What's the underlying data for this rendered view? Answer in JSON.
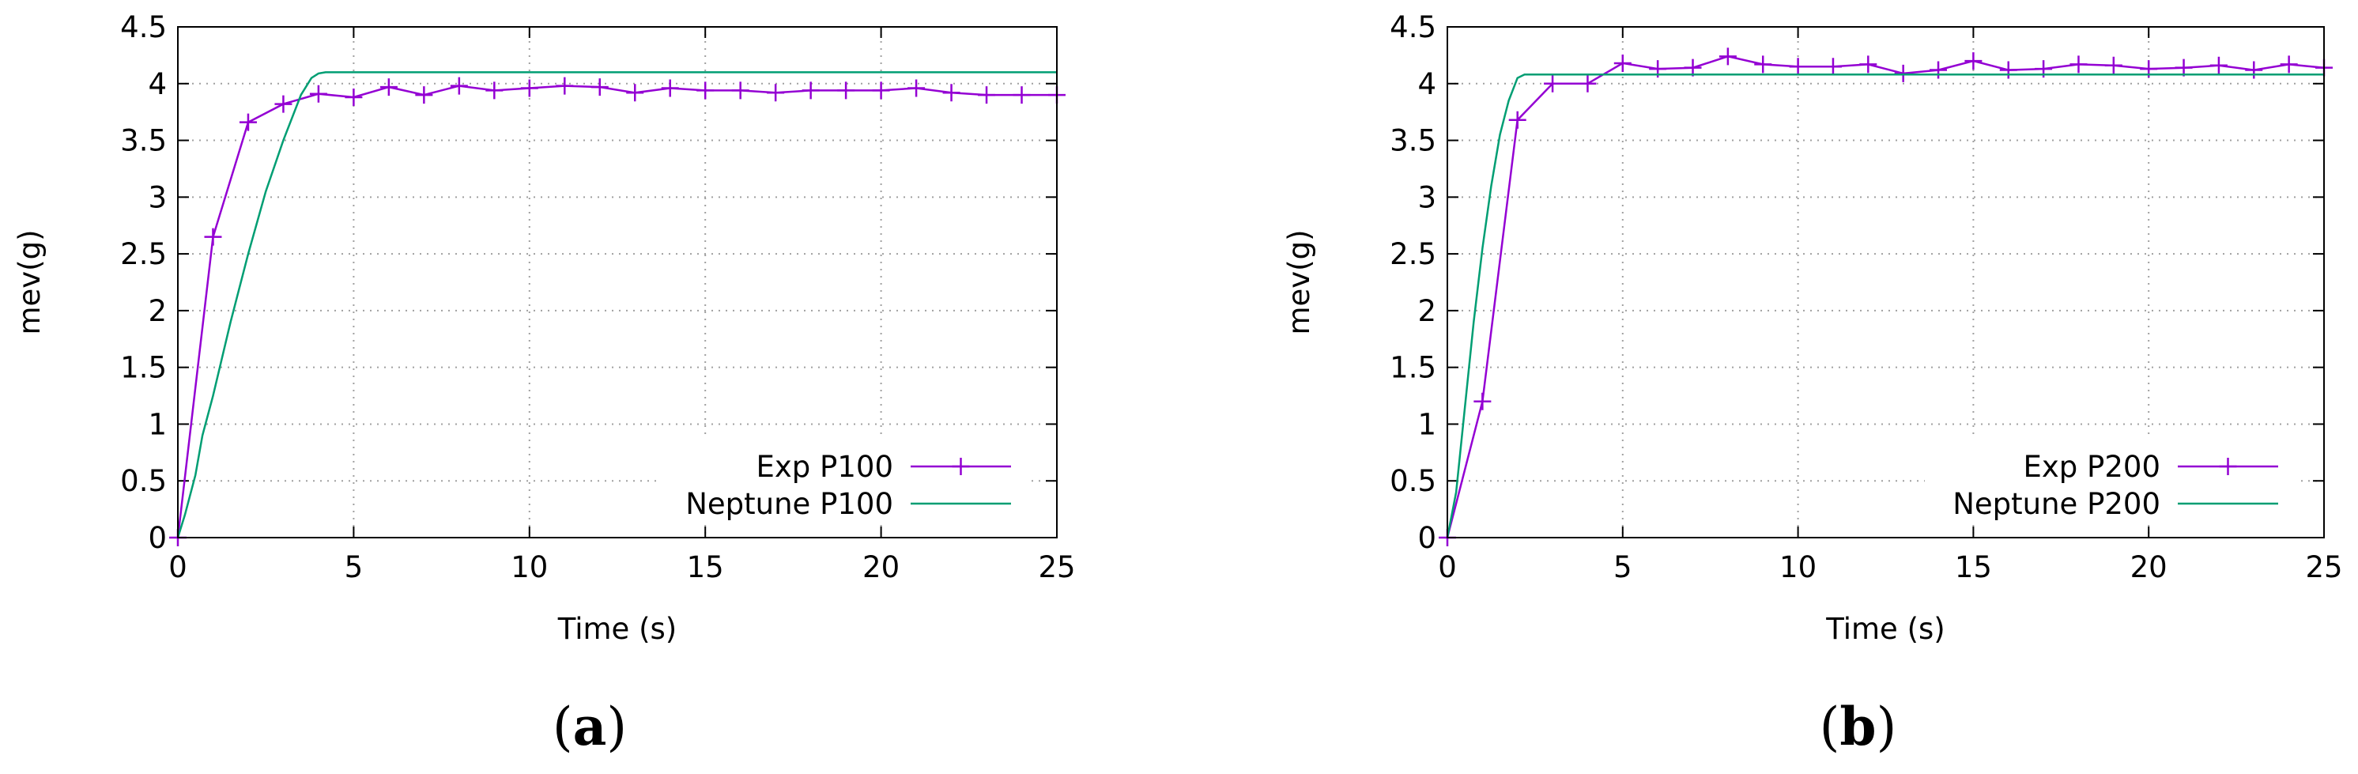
{
  "chart_data": [
    {
      "type": "line",
      "caption": "a",
      "xlabel": "Time (s)",
      "ylabel": "mev(g)",
      "xlim": [
        0,
        25
      ],
      "ylim": [
        0,
        4.5
      ],
      "xticks": [
        "0",
        "5",
        "10",
        "15",
        "20",
        "25"
      ],
      "yticks": [
        "0",
        "0.5",
        "1",
        "1.5",
        "2",
        "2.5",
        "3",
        "3.5",
        "4",
        "4.5"
      ],
      "grid": true,
      "legend_position": "bottom-right",
      "series": [
        {
          "name": "Exp P100",
          "color": "#9400d3",
          "marker": "plus",
          "x": [
            0,
            1,
            2,
            3,
            4,
            5,
            6,
            7,
            8,
            9,
            10,
            11,
            12,
            13,
            14,
            15,
            16,
            17,
            18,
            19,
            20,
            21,
            22,
            23,
            24,
            25
          ],
          "y": [
            0,
            2.65,
            3.66,
            3.82,
            3.91,
            3.88,
            3.97,
            3.9,
            3.98,
            3.94,
            3.96,
            3.98,
            3.97,
            3.92,
            3.96,
            3.94,
            3.94,
            3.92,
            3.94,
            3.94,
            3.94,
            3.96,
            3.92,
            3.9,
            3.9,
            3.9
          ]
        },
        {
          "name": "Neptune P100",
          "color": "#009e73",
          "marker": "none",
          "x": [
            0,
            0.2,
            0.5,
            0.7,
            1.0,
            1.5,
            2.0,
            2.5,
            3.0,
            3.5,
            3.8,
            4.0,
            4.2,
            5,
            10,
            15,
            20,
            25
          ],
          "y": [
            0,
            0.2,
            0.55,
            0.9,
            1.25,
            1.9,
            2.5,
            3.05,
            3.5,
            3.9,
            4.05,
            4.09,
            4.1,
            4.1,
            4.1,
            4.1,
            4.1,
            4.1
          ]
        }
      ]
    },
    {
      "type": "line",
      "caption": "b",
      "xlabel": "Time (s)",
      "ylabel": "mev(g)",
      "xlim": [
        0,
        25
      ],
      "ylim": [
        0,
        4.5
      ],
      "xticks": [
        "0",
        "5",
        "10",
        "15",
        "20",
        "25"
      ],
      "yticks": [
        "0",
        "0.5",
        "1",
        "1.5",
        "2",
        "2.5",
        "3",
        "3.5",
        "4",
        "4.5"
      ],
      "grid": true,
      "legend_position": "bottom-right",
      "series": [
        {
          "name": "Exp P200",
          "color": "#9400d3",
          "marker": "plus",
          "x": [
            0,
            1,
            2,
            3,
            4,
            5,
            6,
            7,
            8,
            9,
            10,
            11,
            12,
            13,
            14,
            15,
            16,
            17,
            18,
            19,
            20,
            21,
            22,
            23,
            24,
            25
          ],
          "y": [
            0,
            1.2,
            3.68,
            4.0,
            4.0,
            4.18,
            4.13,
            4.14,
            4.24,
            4.17,
            4.15,
            4.15,
            4.17,
            4.09,
            4.12,
            4.2,
            4.12,
            4.13,
            4.17,
            4.16,
            4.13,
            4.14,
            4.16,
            4.12,
            4.17,
            4.14
          ]
        },
        {
          "name": "Neptune P200",
          "color": "#009e73",
          "marker": "none",
          "x": [
            0,
            0.25,
            0.5,
            0.75,
            1.0,
            1.25,
            1.5,
            1.75,
            2.0,
            2.2,
            2.5,
            5,
            10,
            15,
            20,
            25
          ],
          "y": [
            0,
            0.4,
            1.15,
            1.9,
            2.55,
            3.1,
            3.55,
            3.85,
            4.05,
            4.08,
            4.08,
            4.08,
            4.08,
            4.08,
            4.08,
            4.08
          ]
        }
      ]
    }
  ]
}
